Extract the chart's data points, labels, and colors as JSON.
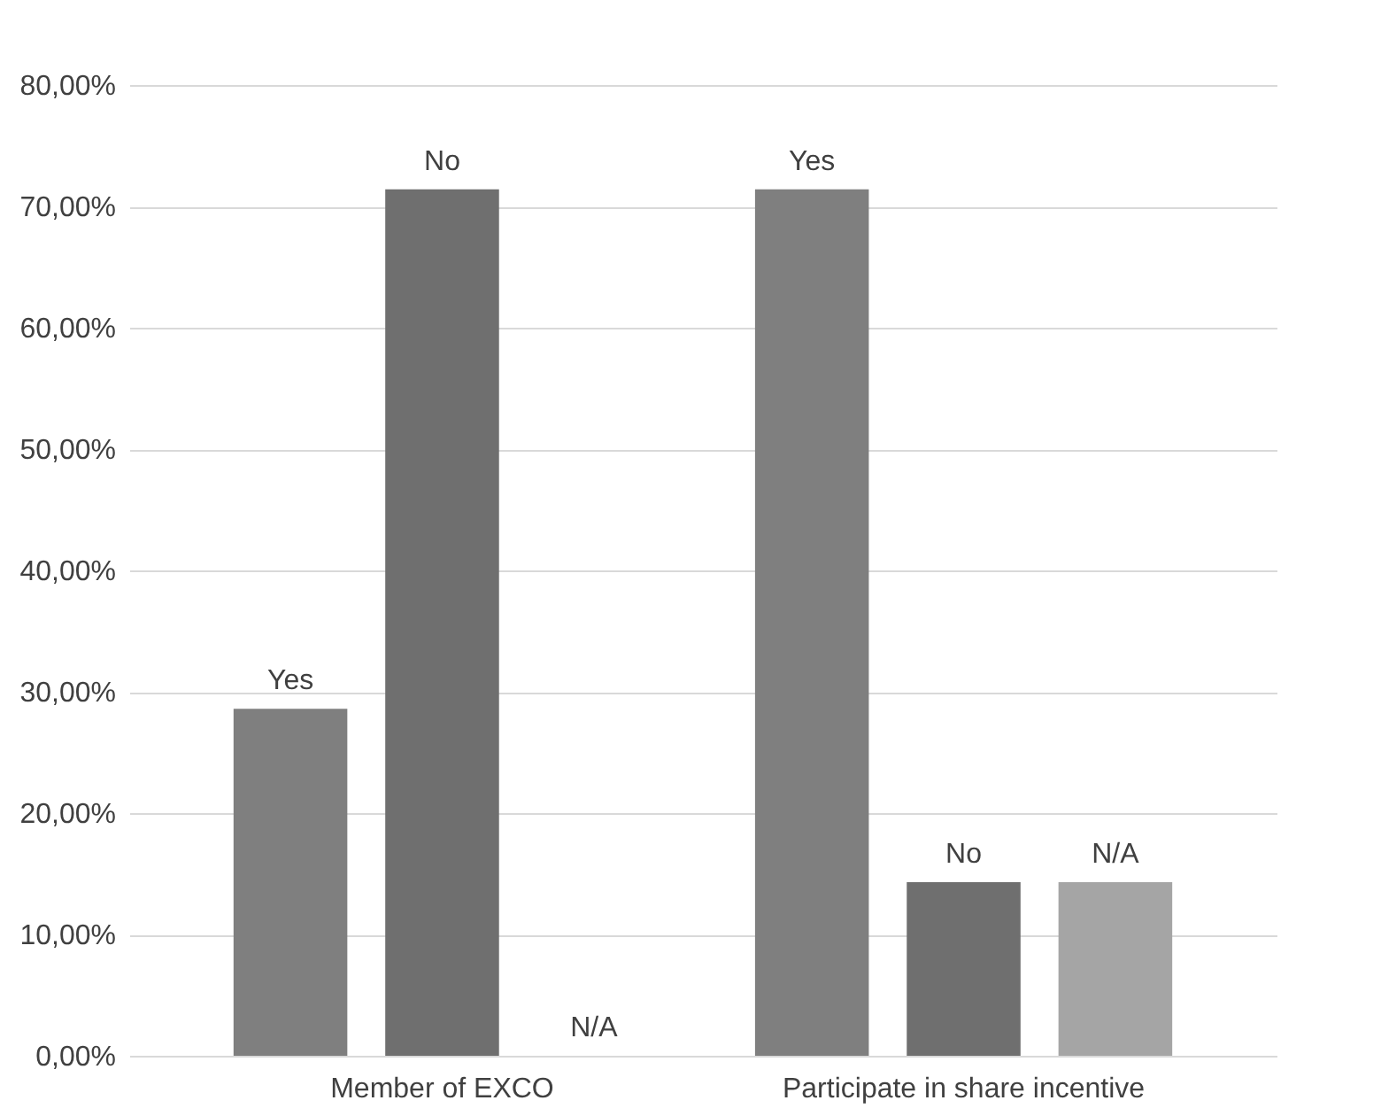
{
  "chart_data": {
    "type": "bar",
    "categories": [
      "Member of EXCO",
      "Participate in share incentive"
    ],
    "series": [
      {
        "name": "Yes",
        "color": "#7f7f7f",
        "values": [
          28.6,
          71.4
        ]
      },
      {
        "name": "No",
        "color": "#6f6f6f",
        "values": [
          71.4,
          14.3
        ]
      },
      {
        "name": "N/A",
        "color": "#a5a5a5",
        "values": [
          0,
          14.3
        ]
      }
    ],
    "ylim": [
      0,
      80
    ],
    "yticks": [
      {
        "value": 0,
        "label": "0,00%"
      },
      {
        "value": 10,
        "label": "10,00%"
      },
      {
        "value": 20,
        "label": "20,00%"
      },
      {
        "value": 30,
        "label": "30,00%"
      },
      {
        "value": 40,
        "label": "40,00%"
      },
      {
        "value": 50,
        "label": "50,00%"
      },
      {
        "value": 60,
        "label": "60,00%"
      },
      {
        "value": 70,
        "label": "70,00%"
      },
      {
        "value": 80,
        "label": "80,00%"
      }
    ],
    "grid": "y",
    "legend": false
  }
}
